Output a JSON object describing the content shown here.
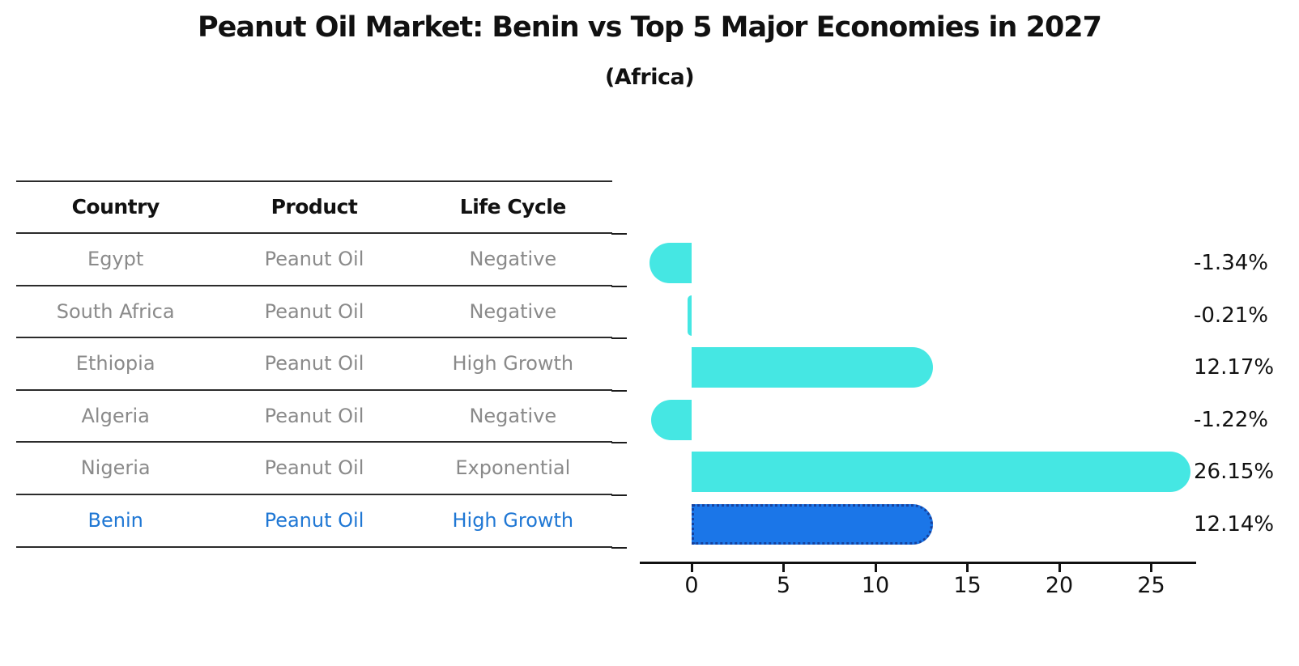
{
  "title": "Peanut Oil Market: Benin vs Top 5 Major Economies in 2027",
  "subtitle": "(Africa)",
  "table": {
    "headers": [
      "Country",
      "Product",
      "Life Cycle"
    ],
    "rows": [
      {
        "country": "Egypt",
        "product": "Peanut Oil",
        "life_cycle": "Negative"
      },
      {
        "country": "South Africa",
        "product": "Peanut Oil",
        "life_cycle": "Negative"
      },
      {
        "country": "Ethiopia",
        "product": "Peanut Oil",
        "life_cycle": "High Growth"
      },
      {
        "country": "Algeria",
        "product": "Peanut Oil",
        "life_cycle": "Negative"
      },
      {
        "country": "Nigeria",
        "product": "Peanut Oil",
        "life_cycle": "Exponential"
      },
      {
        "country": "Benin",
        "product": "Peanut Oil",
        "life_cycle": "High Growth"
      }
    ],
    "highlight_row_text_color": "#1f77d4"
  },
  "chart_data": {
    "type": "bar",
    "orientation": "horizontal",
    "categories": [
      "Egypt",
      "South Africa",
      "Ethiopia",
      "Algeria",
      "Nigeria",
      "Benin"
    ],
    "values": [
      -1.34,
      -0.21,
      12.17,
      -1.22,
      26.15,
      12.14
    ],
    "value_labels": [
      "-1.34%",
      "-0.21%",
      "12.17%",
      "-1.22%",
      "26.15%",
      "12.14%"
    ],
    "x_ticks": [
      0,
      5,
      10,
      15,
      20,
      25
    ],
    "xlim": [
      -2.8,
      27.4
    ],
    "grid": false,
    "legend": "none",
    "bar_color": "#45e7e3",
    "highlight_index": 5,
    "highlight_color": "#1b76e8",
    "highlight_border_color": "#16429e"
  }
}
